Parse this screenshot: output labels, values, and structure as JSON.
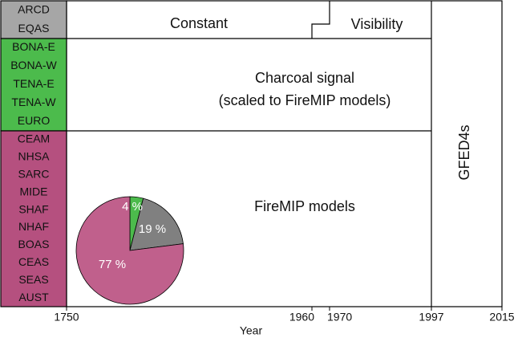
{
  "regions": [
    {
      "color": "#a6a6a6",
      "names": [
        "ARCD",
        "EQAS"
      ]
    },
    {
      "color": "#4cbb4c",
      "names": [
        "BONA-E",
        "BONA-W",
        "TENA-E",
        "TENA-W",
        "EURO"
      ]
    },
    {
      "color": "#b5507f",
      "names": [
        "CEAM",
        "NHSA",
        "SARC",
        "MIDE",
        "SHAF",
        "NHAF",
        "BOAS",
        "CEAS",
        "SEAS",
        "AUST"
      ]
    }
  ],
  "panels": {
    "constant": "Constant",
    "visibility": "Visibility",
    "charcoal": [
      "Charcoal signal",
      "(scaled to FireMIP models)"
    ],
    "firemip": "FireMIP models",
    "gfed": "GFED4s"
  },
  "axis": {
    "label": "Year",
    "ticks": [
      1750,
      1960,
      1970,
      1997,
      2015
    ]
  },
  "pie": {
    "values": [
      4,
      19,
      77
    ],
    "value_labels": [
      "4 %",
      "19 %",
      "77 %"
    ],
    "colors": [
      "#4cbb4c",
      "#808080",
      "#c0608c"
    ]
  }
}
